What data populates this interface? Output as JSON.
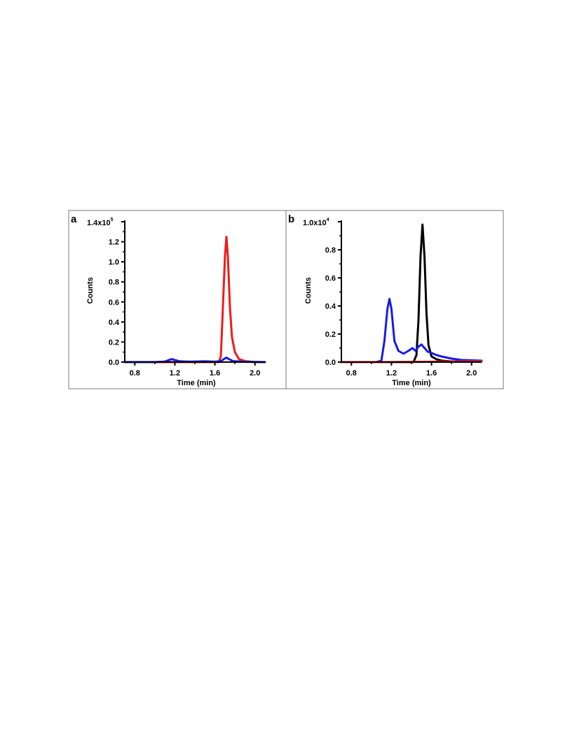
{
  "panels": [
    {
      "label": "a"
    },
    {
      "label": "b"
    }
  ],
  "chart_data": [
    {
      "type": "line",
      "panel": "a",
      "title": "",
      "xlabel": "Time (min)",
      "ylabel": "Counts",
      "y_exponent_label": "1.4x10",
      "y_exponent_sup": "5",
      "xlim": [
        0.7,
        2.1
      ],
      "ylim": [
        0,
        1.4
      ],
      "x_ticks": [
        "0.8",
        "1.2",
        "1.6",
        "2.0"
      ],
      "x_tick_values": [
        0.8,
        1.2,
        1.6,
        2.0
      ],
      "y_ticks": [
        "0.0",
        "0.2",
        "0.4",
        "0.6",
        "0.8",
        "1.0",
        "1.2"
      ],
      "y_tick_values": [
        0.0,
        0.2,
        0.4,
        0.6,
        0.8,
        1.0,
        1.2
      ],
      "grid": false,
      "series": [
        {
          "color": "#ee1c1c",
          "x": [
            0.7,
            1.0,
            1.3,
            1.6,
            1.64,
            1.66,
            1.68,
            1.7,
            1.715,
            1.73,
            1.75,
            1.77,
            1.8,
            1.84,
            1.9,
            2.0,
            2.1
          ],
          "y": [
            0.0,
            0.0,
            0.0,
            0.0,
            0.0,
            0.06,
            0.55,
            1.05,
            1.25,
            1.05,
            0.55,
            0.25,
            0.1,
            0.03,
            0.01,
            0.0,
            0.0
          ]
        },
        {
          "color": "#1a1ae6",
          "x": [
            0.7,
            1.0,
            1.1,
            1.14,
            1.17,
            1.2,
            1.25,
            1.35,
            1.5,
            1.6,
            1.66,
            1.69,
            1.715,
            1.74,
            1.78,
            1.9,
            2.1
          ],
          "y": [
            0.0,
            0.0,
            0.005,
            0.02,
            0.03,
            0.02,
            0.008,
            0.004,
            0.008,
            0.004,
            0.01,
            0.03,
            0.045,
            0.03,
            0.01,
            0.003,
            0.0
          ]
        }
      ]
    },
    {
      "type": "line",
      "panel": "b",
      "title": "",
      "xlabel": "Time (min)",
      "ylabel": "Counts",
      "y_exponent_label": "1.0x10",
      "y_exponent_sup": "4",
      "xlim": [
        0.7,
        2.1
      ],
      "ylim": [
        0,
        1.0
      ],
      "x_ticks": [
        "0.8",
        "1.2",
        "1.6",
        "2.0"
      ],
      "x_tick_values": [
        0.8,
        1.2,
        1.6,
        2.0
      ],
      "y_ticks": [
        "0.0",
        "0.2",
        "0.4",
        "0.6",
        "0.8"
      ],
      "y_tick_values": [
        0.0,
        0.2,
        0.4,
        0.6,
        0.8
      ],
      "grid": false,
      "series": [
        {
          "color": "#000000",
          "x": [
            0.7,
            1.3,
            1.42,
            1.45,
            1.47,
            1.49,
            1.51,
            1.53,
            1.55,
            1.57,
            1.6,
            1.65,
            1.7,
            1.8,
            2.1
          ],
          "y": [
            0.0,
            0.0,
            0.0,
            0.05,
            0.3,
            0.75,
            0.98,
            0.75,
            0.35,
            0.12,
            0.04,
            0.02,
            0.01,
            0.005,
            0.005
          ]
        },
        {
          "color": "#1a1ae6",
          "x": [
            0.7,
            1.05,
            1.1,
            1.13,
            1.16,
            1.18,
            1.2,
            1.23,
            1.27,
            1.32,
            1.37,
            1.41,
            1.44,
            1.47,
            1.5,
            1.53,
            1.56,
            1.6,
            1.65,
            1.7,
            1.8,
            1.9,
            2.1
          ],
          "y": [
            0.0,
            0.0,
            0.01,
            0.15,
            0.38,
            0.45,
            0.38,
            0.15,
            0.08,
            0.06,
            0.08,
            0.1,
            0.08,
            0.11,
            0.125,
            0.1,
            0.075,
            0.065,
            0.05,
            0.04,
            0.025,
            0.015,
            0.01
          ]
        },
        {
          "color": "#ee1c1c",
          "x": [
            0.7,
            1.1,
            1.5,
            1.8,
            2.1
          ],
          "y": [
            0.0,
            0.0,
            0.002,
            0.004,
            0.005
          ]
        }
      ]
    }
  ]
}
